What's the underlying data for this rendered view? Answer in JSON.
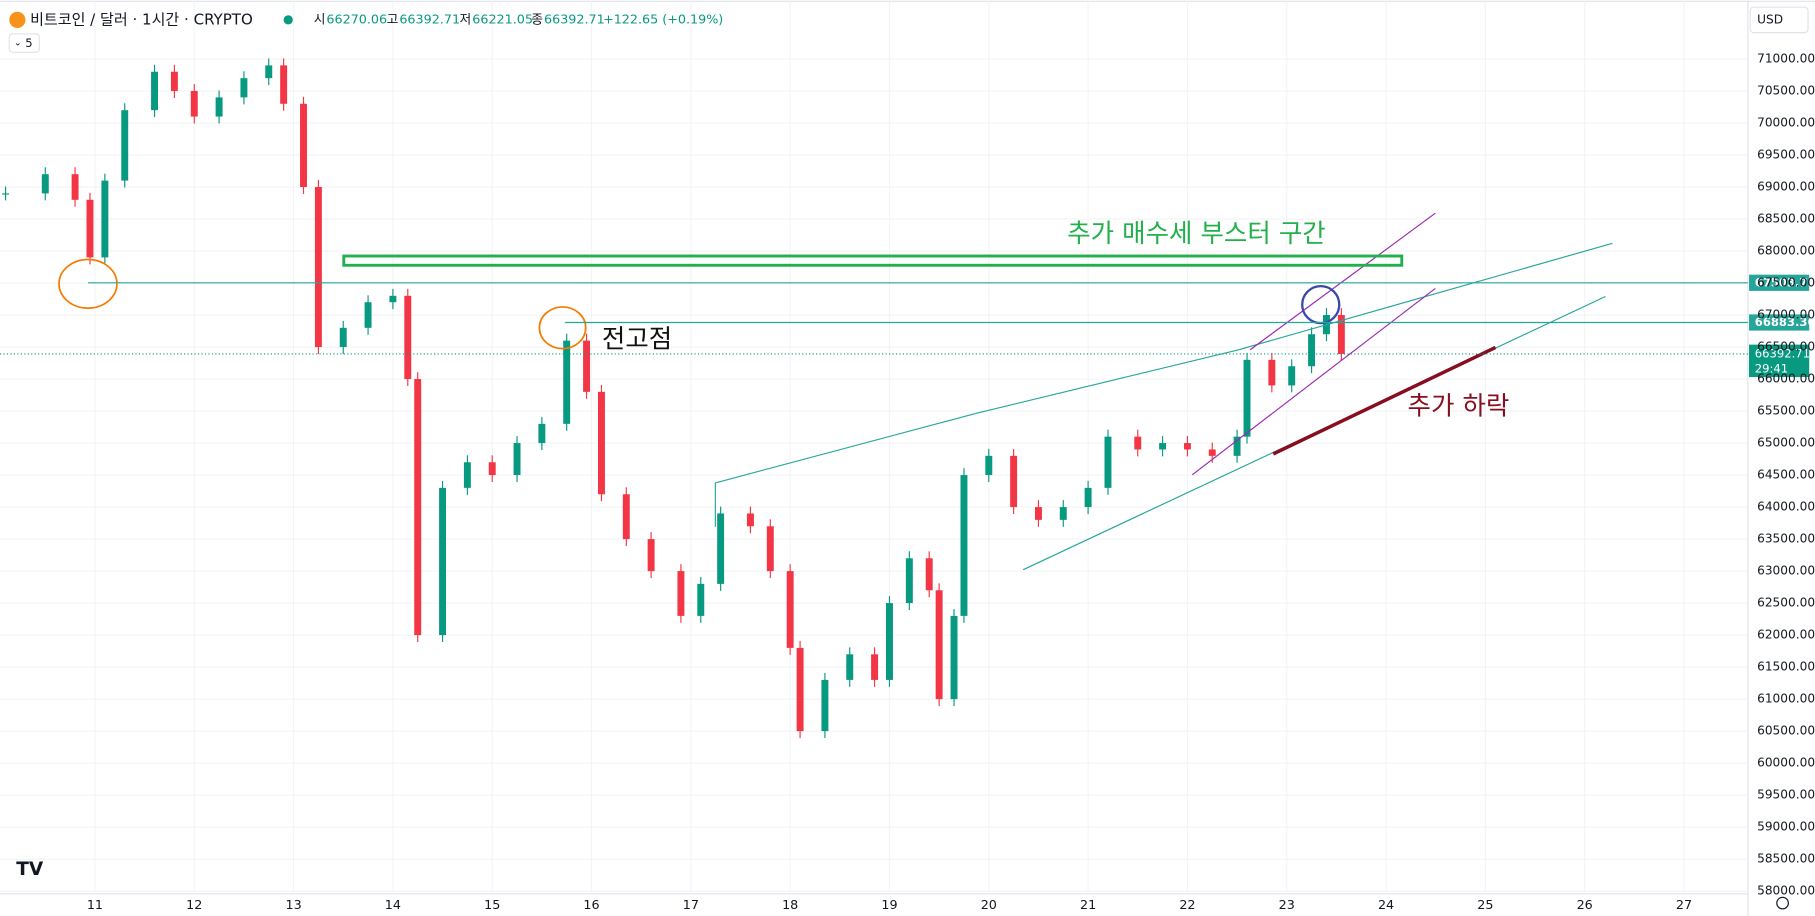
{
  "chart_data": {
    "type": "candlestick",
    "symbol": "비트코인 / 달러 · 1시간 · CRYPTO",
    "ohlc_labels": [
      "시",
      "고",
      "저",
      "종"
    ],
    "ohlc_values": [
      66270.06,
      66392.71,
      66221.05,
      66392.71
    ],
    "change": "+122.65 (+0.19%)",
    "currency": "USD",
    "interval_badge": "5",
    "x": [
      10.1,
      10.5,
      10.8,
      10.95,
      11.1,
      11.3,
      11.6,
      11.8,
      12.0,
      12.25,
      12.5,
      12.75,
      12.9,
      13.1,
      13.25,
      13.5,
      13.75,
      14.0,
      14.15,
      14.25,
      14.5,
      14.75,
      15.0,
      15.25,
      15.5,
      15.75,
      15.95,
      16.1,
      16.35,
      16.6,
      16.9,
      17.1,
      17.3,
      17.6,
      17.8,
      18.0,
      18.1,
      18.35,
      18.6,
      18.85,
      19.0,
      19.2,
      19.4,
      19.5,
      19.65,
      19.75,
      20.0,
      20.25,
      20.5,
      20.75,
      21.0,
      21.2,
      21.5,
      21.75,
      22.0,
      22.25,
      22.5,
      22.6,
      22.85,
      23.05,
      23.25,
      23.4,
      23.55
    ],
    "values": [
      68900,
      69200,
      68800,
      67900,
      69100,
      70200,
      70800,
      70500,
      70100,
      70400,
      70700,
      70900,
      70300,
      69000,
      66500,
      66800,
      67200,
      67300,
      66000,
      62000,
      64300,
      64700,
      64500,
      65000,
      65300,
      66600,
      65800,
      64200,
      63500,
      63000,
      62300,
      62800,
      63900,
      63700,
      63000,
      61800,
      60500,
      61300,
      61700,
      61300,
      62500,
      63200,
      62700,
      61000,
      62300,
      64500,
      64800,
      64000,
      63800,
      64000,
      64300,
      65100,
      64900,
      65000,
      64900,
      64800,
      65100,
      66300,
      65900,
      66200,
      66700,
      67000,
      66392.71
    ],
    "xlim": [
      10.044,
      27.643
    ],
    "xticks": [
      11,
      12,
      13,
      14,
      15,
      16,
      17,
      18,
      19,
      20,
      21,
      22,
      23,
      24,
      25,
      26,
      27
    ],
    "ylim": [
      57850,
      71900
    ],
    "yticks": [
      {
        "value": 58000,
        "label": "58000.00"
      },
      {
        "value": 58500,
        "label": "58500.00"
      },
      {
        "value": 59000,
        "label": "59000.00"
      },
      {
        "value": 59500,
        "label": "59500.00"
      },
      {
        "value": 60000,
        "label": "60000.00"
      },
      {
        "value": 60500,
        "label": "60500.00"
      },
      {
        "value": 61000,
        "label": "61000.00"
      },
      {
        "value": 61500,
        "label": "61500.00"
      },
      {
        "value": 62000,
        "label": "62000.00"
      },
      {
        "value": 62500,
        "label": "62500.00"
      },
      {
        "value": 63000,
        "label": "63000.00"
      },
      {
        "value": 63500,
        "label": "63500.00"
      },
      {
        "value": 64000,
        "label": "64000.00"
      },
      {
        "value": 64500,
        "label": "64500.00"
      },
      {
        "value": 65000,
        "label": "65000.00"
      },
      {
        "value": 65500,
        "label": "65500.00"
      },
      {
        "value": 66000,
        "label": "66000.00"
      },
      {
        "value": 66500,
        "label": "66500.00"
      },
      {
        "value": 67000,
        "label": "67000.00"
      },
      {
        "value": 67500,
        "label": "67500.00"
      },
      {
        "value": 68000,
        "label": "68000.00"
      },
      {
        "value": 68500,
        "label": "68500.00"
      },
      {
        "value": 69000,
        "label": "69000.00"
      },
      {
        "value": 69500,
        "label": "69500.00"
      },
      {
        "value": 70000,
        "label": "70000.00"
      },
      {
        "value": 70500,
        "label": "70500.00"
      },
      {
        "value": 71000,
        "label": "71000.00"
      }
    ],
    "up_color": "#089981",
    "down_color": "#f23645",
    "price_lines": [
      67503.71,
      66883.36
    ],
    "last_price": 66392.71,
    "countdown": "29:41",
    "annotations": [
      "추가 매수세 부스터 구간",
      "전고점",
      "추가 하락"
    ]
  }
}
